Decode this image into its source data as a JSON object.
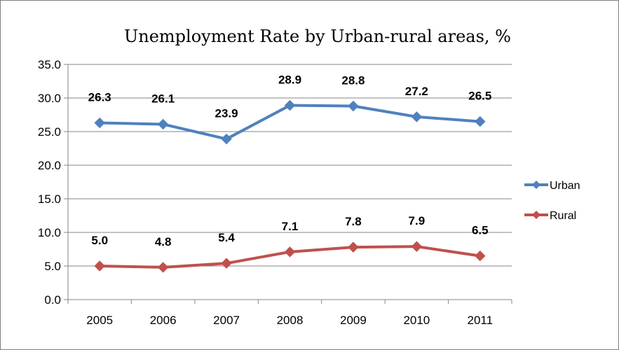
{
  "chart_data": {
    "type": "line",
    "title": "Unemployment Rate by Urban-rural areas, %",
    "xlabel": "",
    "ylabel": "",
    "categories": [
      "2005",
      "2006",
      "2007",
      "2008",
      "2009",
      "2010",
      "2011"
    ],
    "ylim": [
      0,
      35
    ],
    "y_ticks": [
      "0.0",
      "5.0",
      "10.0",
      "15.0",
      "20.0",
      "25.0",
      "30.0",
      "35.0"
    ],
    "grid": true,
    "legend_position": "right",
    "series": [
      {
        "name": "Urban",
        "color": "#4F81BD",
        "marker": "diamond",
        "values": [
          26.3,
          26.1,
          23.9,
          28.9,
          28.8,
          27.2,
          26.5
        ],
        "labels": [
          "26.3",
          "26.1",
          "23.9",
          "28.9",
          "28.8",
          "27.2",
          "26.5"
        ]
      },
      {
        "name": "Rural",
        "color": "#C0504D",
        "marker": "diamond",
        "values": [
          5.0,
          4.8,
          5.4,
          7.1,
          7.8,
          7.9,
          6.5
        ],
        "labels": [
          "5.0",
          "4.8",
          "5.4",
          "7.1",
          "7.8",
          "7.9",
          "6.5"
        ]
      }
    ]
  }
}
